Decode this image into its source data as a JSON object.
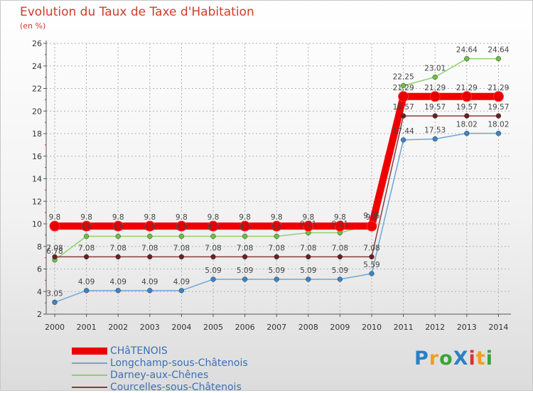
{
  "chart_data": {
    "type": "line",
    "title": "Evolution du Taux de Taxe d'Habitation",
    "ylabel": "(en %)",
    "xlabel": "",
    "categories": [
      "2000",
      "2001",
      "2002",
      "2003",
      "2004",
      "2005",
      "2006",
      "2007",
      "2008",
      "2009",
      "2010",
      "2011",
      "2012",
      "2013",
      "2014"
    ],
    "ylim": [
      2,
      26
    ],
    "yticks": [
      2,
      4,
      6,
      8,
      10,
      12,
      14,
      16,
      18,
      20,
      22,
      24,
      26
    ],
    "grid": true,
    "legend_position": "bottom-left",
    "series": [
      {
        "name": "Darney-aux-Chênes",
        "color": "#8fd16a",
        "marker": "#6cc040",
        "values": [
          6.8,
          8.9,
          8.9,
          8.9,
          8.9,
          8.9,
          8.9,
          8.9,
          9.21,
          9.21,
          9.95,
          22.25,
          23.01,
          24.64,
          24.64
        ],
        "labels": [
          "6.78",
          "8.9",
          "8.9",
          "8.9",
          "8.9",
          "8.9",
          "8.9",
          "8.9",
          "9.21",
          "9.21",
          "9.95",
          "22.25",
          "23.01",
          "24.64",
          "24.64"
        ]
      },
      {
        "name": "Longchamp-sous-Châtenois",
        "color": "#6fa6d8",
        "marker": "#3a85c6",
        "values": [
          3.05,
          4.09,
          4.09,
          4.09,
          4.09,
          5.09,
          5.09,
          5.09,
          5.09,
          5.09,
          5.59,
          17.44,
          17.53,
          18.02,
          18.02
        ],
        "labels": [
          "3.05",
          "4.09",
          "4.09",
          "4.09",
          "4.09",
          "5.09",
          "5.09",
          "5.09",
          "5.09",
          "5.09",
          "5.59",
          "17.44",
          "17.53",
          "18.02",
          "18.02"
        ]
      },
      {
        "name": "Courcelles-sous-Châtenois",
        "color": "#8b3a3a",
        "marker": "#6b1f1f",
        "values": [
          7.08,
          7.08,
          7.08,
          7.08,
          7.08,
          7.08,
          7.08,
          7.08,
          7.08,
          7.08,
          7.08,
          19.57,
          19.57,
          19.57,
          19.57
        ],
        "labels": [
          "7.08",
          "7.08",
          "7.08",
          "7.08",
          "7.08",
          "7.08",
          "7.08",
          "7.08",
          "7.08",
          "7.08",
          "7.08",
          "19.57",
          "19.57",
          "19.57",
          "19.57"
        ]
      },
      {
        "name": "CHâTENOIS",
        "color": "#ee0000",
        "marker": "#e80000",
        "thick": true,
        "values": [
          9.8,
          9.8,
          9.8,
          9.8,
          9.8,
          9.8,
          9.8,
          9.8,
          9.8,
          9.8,
          9.8,
          21.29,
          21.29,
          21.29,
          21.29
        ],
        "labels": [
          "9.8",
          "9.8",
          "9.8",
          "9.8",
          "9.8",
          "9.8",
          "9.8",
          "9.8",
          "9.8",
          "9.8",
          "9.8",
          "21.29",
          "21.29",
          "21.29",
          "21.29"
        ]
      }
    ],
    "legend_order": [
      "CHâTENOIS",
      "Longchamp-sous-Châtenois",
      "Darney-aux-Chênes",
      "Courcelles-sous-Châtenois"
    ]
  },
  "logo": {
    "text": "ProXiti",
    "letters": [
      {
        "ch": "P",
        "color": "#2d7fc4"
      },
      {
        "ch": "r",
        "color": "#f0a020"
      },
      {
        "ch": "o",
        "color": "#3aa33a"
      },
      {
        "ch": "X",
        "color": "#2d7fc4"
      },
      {
        "ch": "i",
        "color": "#e03030"
      },
      {
        "ch": "t",
        "color": "#f0a020"
      },
      {
        "ch": "i",
        "color": "#3aa33a"
      }
    ]
  }
}
